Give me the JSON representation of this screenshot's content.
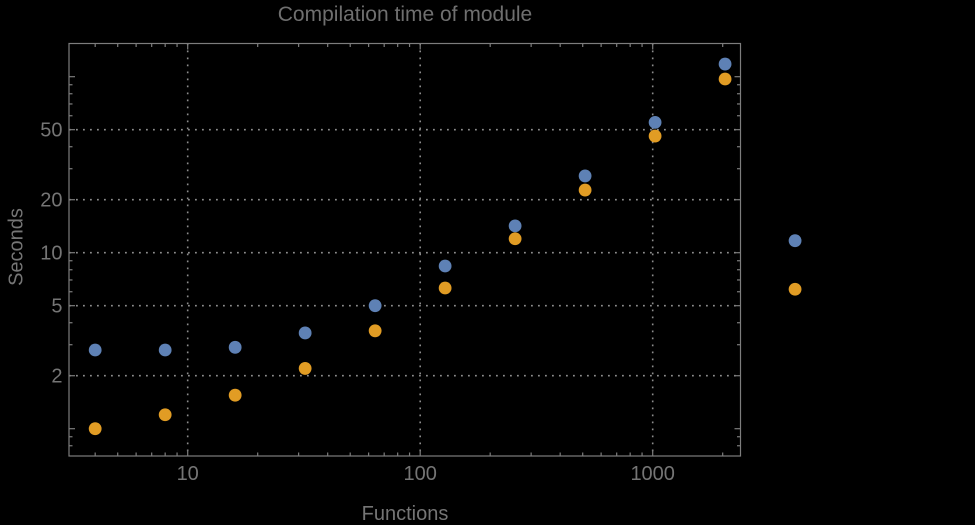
{
  "colors": {
    "background": "#000000",
    "title_text": "#6f6f6f",
    "axis_text": "#757575",
    "frame": "#7d7d7d",
    "gridline": "#8d8d8d",
    "series_blue": "#5e81b5",
    "series_orange": "#e19c24"
  },
  "chart_data": {
    "type": "scatter",
    "title": "Compilation time of module",
    "xlabel": "Functions",
    "ylabel": "Seconds",
    "x_scale": "log",
    "y_scale": "log",
    "xlim": [
      3.1,
      2390
    ],
    "ylim": [
      0.7,
      155
    ],
    "grid": "dotted",
    "legend": "none",
    "x": [
      4,
      8,
      16,
      32,
      64,
      128,
      256,
      512,
      1024,
      2048,
      4096
    ],
    "series": [
      {
        "name": "blue",
        "color": "#5e81b5",
        "values": [
          2.8,
          2.8,
          2.9,
          3.5,
          5.0,
          8.4,
          14.2,
          27.3,
          55,
          118,
          11.7
        ]
      },
      {
        "name": "orange",
        "color": "#e19c24",
        "values": [
          1.0,
          1.2,
          1.55,
          2.2,
          3.6,
          6.3,
          12.0,
          22.7,
          46,
          97,
          6.2
        ]
      }
    ],
    "x_ticks_labeled": [
      10,
      100,
      1000
    ],
    "y_ticks_labeled": [
      2,
      5,
      10,
      20,
      50
    ],
    "y_ticks_unlabeled_decades": [
      1,
      100
    ],
    "layout_note": "last x pair (4096) is drawn outside the right edge of the plot frame"
  }
}
